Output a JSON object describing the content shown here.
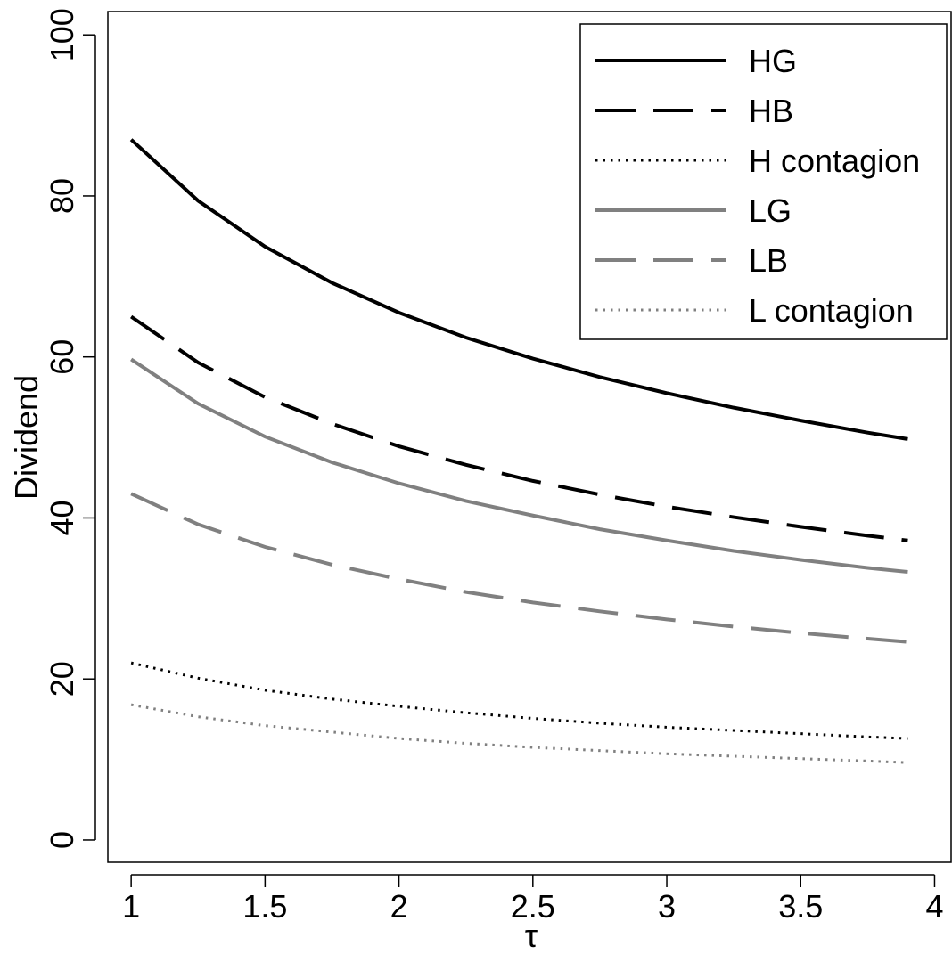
{
  "chart_data": {
    "type": "line",
    "xlabel": "τ",
    "ylabel": "Dividend",
    "x": [
      1,
      1.25,
      1.5,
      1.75,
      2,
      2.25,
      2.5,
      2.75,
      3,
      3.25,
      3.5,
      3.75,
      3.9
    ],
    "xlim": [
      0.913,
      4.065
    ],
    "ylim": [
      -2.77,
      102.9
    ],
    "xticks": [
      1,
      1.5,
      2,
      2.5,
      3,
      3.5,
      4
    ],
    "yticks": [
      0,
      20,
      40,
      60,
      80,
      100
    ],
    "legend": "topright",
    "series": [
      {
        "name": "HG",
        "color": "#000000",
        "linestyle": "solid",
        "values": [
          87,
          79.4,
          73.7,
          69.2,
          65.5,
          62.4,
          59.8,
          57.5,
          55.5,
          53.7,
          52.1,
          50.6,
          49.8
        ]
      },
      {
        "name": "HB",
        "color": "#000000",
        "linestyle": "dashed",
        "values": [
          65,
          59.3,
          55.0,
          51.7,
          48.9,
          46.6,
          44.6,
          42.9,
          41.4,
          40.1,
          38.9,
          37.8,
          37.2
        ]
      },
      {
        "name": "H contagion",
        "color": "#000000",
        "linestyle": "dotted",
        "values": [
          22,
          20.1,
          18.6,
          17.5,
          16.6,
          15.8,
          15.1,
          14.5,
          14.0,
          13.6,
          13.2,
          12.8,
          12.6
        ]
      },
      {
        "name": "LG",
        "color": "#808080",
        "linestyle": "solid",
        "values": [
          59.7,
          54.2,
          50.1,
          46.9,
          44.3,
          42.1,
          40.3,
          38.6,
          37.2,
          35.9,
          34.8,
          33.8,
          33.3
        ]
      },
      {
        "name": "LB",
        "color": "#808080",
        "linestyle": "dashed",
        "values": [
          43,
          39.2,
          36.4,
          34.2,
          32.4,
          30.8,
          29.5,
          28.4,
          27.4,
          26.5,
          25.7,
          25.0,
          24.6
        ]
      },
      {
        "name": "L contagion",
        "color": "#808080",
        "linestyle": "dotted",
        "values": [
          16.8,
          15.3,
          14.2,
          13.4,
          12.6,
          12.0,
          11.5,
          11.1,
          10.7,
          10.4,
          10.1,
          9.8,
          9.6
        ]
      }
    ]
  }
}
